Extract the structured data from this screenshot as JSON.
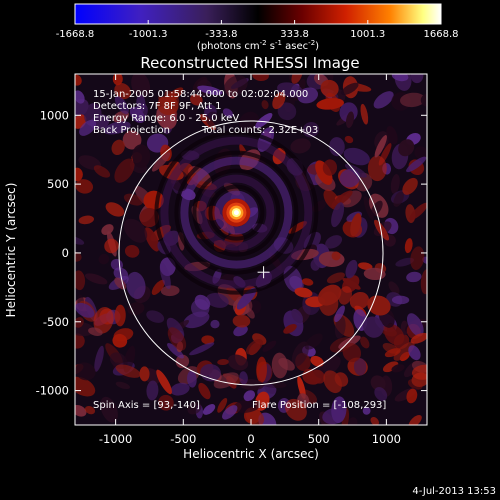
{
  "chart_data": {
    "type": "heatmap",
    "title": "Reconstructed RHESSI Image",
    "xlabel": "Heliocentric X (arcsec)",
    "ylabel": "Heliocentric Y (arcsec)",
    "xlim": [
      -1300,
      1300
    ],
    "ylim": [
      -1250,
      1300
    ],
    "x_ticks": [
      "-1000",
      "-500",
      "0",
      "500",
      "1000"
    ],
    "y_ticks": [
      "-1000",
      "-500",
      "0",
      "500",
      "1000"
    ],
    "x_tick_values": [
      -1000,
      -500,
      0,
      500,
      1000
    ],
    "y_tick_values": [
      -1000,
      -500,
      0,
      500,
      1000
    ],
    "colorbar": {
      "min": -1668.8,
      "max": 1668.8,
      "tick_labels": [
        "-1668.8",
        "-1001.3",
        "-333.8",
        "333.8",
        "1001.3",
        "1668.8"
      ],
      "unit_parts": [
        "(photons cm",
        "-2",
        " s",
        "-1",
        " asec",
        "-2",
        ")"
      ],
      "colors": [
        "#0000ff",
        "#4020c0",
        "#3a1f5a",
        "#000000",
        "#6a0000",
        "#d02000",
        "#ff8000",
        "#ffff80",
        "#ffffff"
      ]
    },
    "annotations": {
      "time_range": "15-Jan-2005 01:58:44.000 to 02:02:04.000",
      "detectors": "Detectors: 7F 8F 9F, Att 1",
      "energy_range": "Energy Range: 6.0 - 25.0 keV",
      "method": "Back Projection",
      "total_counts": "Total counts: 2.32E+03",
      "spin_axis": "Spin Axis = [93,-140]",
      "flare_position": "Flare Position = [-108,293]"
    },
    "source": {
      "x": -108,
      "y": 293
    },
    "spin_axis_marker": {
      "x": 93,
      "y": -140
    },
    "solar_limb_radius": 975,
    "footer_date": "4-Jul-2013 13:53"
  }
}
